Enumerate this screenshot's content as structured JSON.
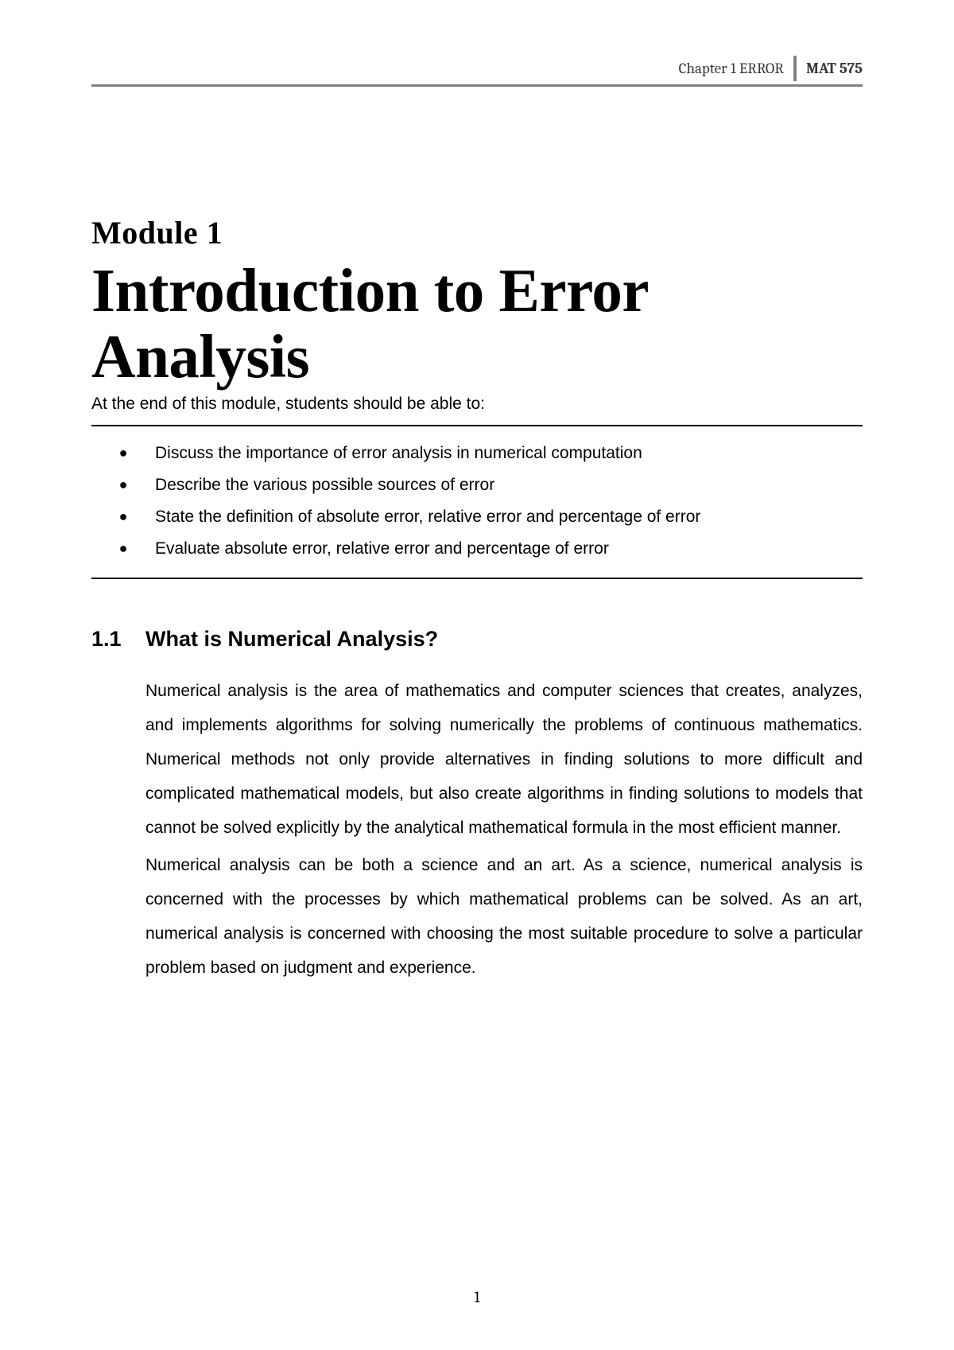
{
  "header": {
    "chapter": "Chapter 1 ERROR",
    "course": "MAT 575"
  },
  "module": {
    "label": "Module 1",
    "title": "Introduction to Error Analysis"
  },
  "intro": "At the end of this module, students should be able to:",
  "objectives": [
    "Discuss the importance of error analysis in numerical computation",
    "Describe the various possible sources of error",
    "State the definition of absolute error, relative error and percentage of error",
    "Evaluate absolute error, relative error and percentage of error"
  ],
  "section": {
    "number": "1.1",
    "title": "What is Numerical Analysis?",
    "paragraphs": [
      "Numerical analysis is the area of mathematics and computer sciences that creates, analyzes, and implements algorithms for solving numerically the problems of continuous mathematics. Numerical methods not only provide alternatives in finding solutions to more difficult and complicated mathematical models, but also create algorithms in finding solutions to models that cannot be solved explicitly by the analytical mathematical formula in the most efficient manner.",
      "Numerical analysis can be both a science and an art. As a science, numerical analysis is concerned with the processes by which mathematical problems can be solved. As an art, numerical analysis is concerned with choosing the most suitable procedure to solve a particular problem based on judgment and experience."
    ]
  },
  "pageNumber": "1",
  "colors": {
    "text": "#000000",
    "headerText": "#3a3a3a",
    "divider": "#808080",
    "background": "#ffffff"
  },
  "typography": {
    "bodyFontSize": 21,
    "headingFontSize": 27,
    "titleFontSize": 77,
    "moduleLabelFontSize": 40,
    "headerFontSize": 19
  }
}
